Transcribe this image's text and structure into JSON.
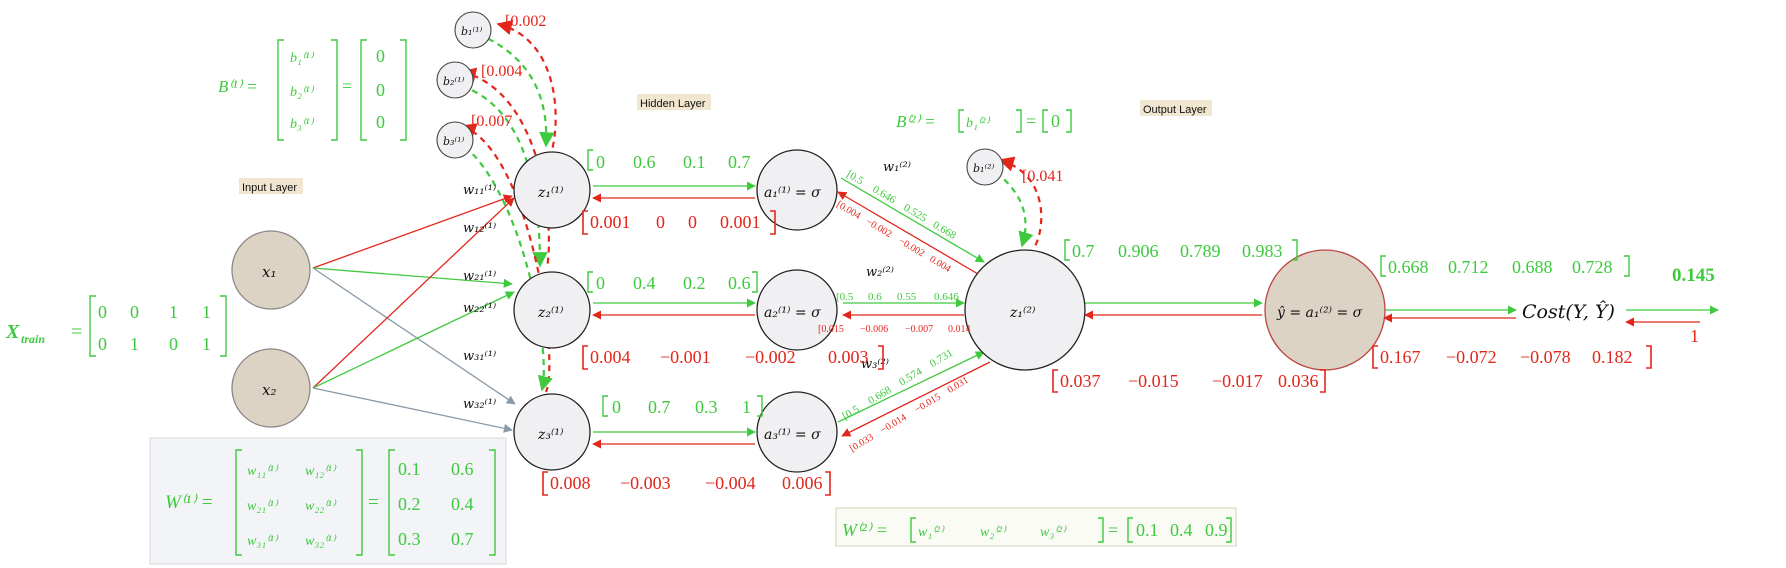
{
  "layers": {
    "input": "Input Layer",
    "hidden": "Hidden Layer",
    "output": "Output Layer"
  },
  "nodes": {
    "x1": "x₁",
    "x2": "x₂",
    "z11": "z₁⁽¹⁾",
    "z21": "z₂⁽¹⁾",
    "z31": "z₃⁽¹⁾",
    "a11": "a₁⁽¹⁾ = σ",
    "a21": "a₂⁽¹⁾ = σ",
    "a31": "a₃⁽¹⁾ = σ",
    "z12": "z₁⁽²⁾",
    "yhat": "ŷ = a₁⁽²⁾ = σ",
    "cost": "Cost(Y, Ŷ)",
    "b11": "b₁⁽¹⁾",
    "b21": "b₂⁽¹⁾",
    "b31": "b₃⁽¹⁾",
    "b12": "b₁⁽²⁾"
  },
  "weight_labels": {
    "w11": "w₁₁⁽¹⁾",
    "w12": "w₁₂⁽¹⁾",
    "w21": "w₂₁⁽¹⁾",
    "w22": "w₂₂⁽¹⁾",
    "w31": "w₃₁⁽¹⁾",
    "w32": "w₃₂⁽¹⁾",
    "w1_2": "w₁⁽²⁾",
    "w2_2": "w₂⁽²⁾",
    "w3_2": "w₃⁽²⁾"
  },
  "x_train": {
    "label": "X",
    "sub": "train",
    "rows": [
      [
        "0",
        "0",
        "1",
        "1"
      ],
      [
        "0",
        "1",
        "0",
        "1"
      ]
    ]
  },
  "B1": {
    "label": "B⁽¹⁾ =",
    "symbols": [
      "b₁⁽¹⁾",
      "b₂⁽¹⁾",
      "b₃⁽¹⁾"
    ],
    "values": [
      "0",
      "0",
      "0"
    ]
  },
  "W1": {
    "label": "W⁽¹⁾ =",
    "symbols": [
      [
        "w₁₁⁽¹⁾",
        "w₁₂⁽¹⁾"
      ],
      [
        "w₂₁⁽¹⁾",
        "w₂₂⁽¹⁾"
      ],
      [
        "w₃₁⁽¹⁾",
        "w₃₂⁽¹⁾"
      ]
    ],
    "values": [
      [
        "0.1",
        "0.6"
      ],
      [
        "0.2",
        "0.4"
      ],
      [
        "0.3",
        "0.7"
      ]
    ]
  },
  "B2": {
    "label": "B⁽²⁾ =",
    "symbol": "b₁⁽²⁾",
    "value": "0"
  },
  "W2": {
    "label": "W⁽²⁾ =",
    "symbols": [
      "w₁⁽²⁾",
      "w₂⁽²⁾",
      "w₃⁽²⁾"
    ],
    "values": [
      "0.1",
      "0.4",
      "0.9"
    ]
  },
  "forward": {
    "z1": [
      "0",
      "0.6",
      "0.1",
      "0.7"
    ],
    "z2": [
      "0",
      "0.4",
      "0.2",
      "0.6"
    ],
    "z3": [
      "0",
      "0.7",
      "0.3",
      "1"
    ],
    "a1_to_z": [
      "0.5",
      "0.646",
      "0.525",
      "0.668"
    ],
    "a2_to_z": [
      "0.5",
      "0.6",
      "0.55",
      "0.646"
    ],
    "a3_to_z": [
      "0.5",
      "0.668",
      "0.574",
      "0.731"
    ],
    "z_out": [
      "0.7",
      "0.906",
      "0.789",
      "0.983"
    ],
    "yhat": [
      "0.668",
      "0.712",
      "0.688",
      "0.728"
    ],
    "cost": "0.145"
  },
  "backward": {
    "z1": [
      "0.001",
      "0",
      "0",
      "0.001"
    ],
    "z2": [
      "0.004",
      "−0.001",
      "−0.002",
      "0.003"
    ],
    "z3": [
      "0.008",
      "−0.003",
      "−0.004",
      "0.006"
    ],
    "a1_to_z": [
      "0.004",
      "−0.002",
      "−0.002",
      "0.004"
    ],
    "a2_to_z": [
      "0.015",
      "−0.006",
      "−0.007",
      "0.014"
    ],
    "a3_to_z": [
      "0.033",
      "−0.014",
      "−0.015",
      "0.031"
    ],
    "z_out": [
      "0.037",
      "−0.015",
      "−0.017",
      "0.036"
    ],
    "yhat": [
      "0.167",
      "−0.072",
      "−0.078",
      "0.182"
    ],
    "cost": "1",
    "b1": "0.002",
    "b2": "0.004",
    "b3": "0.007",
    "b_out": "0.041"
  },
  "colors": {
    "forward": "#3ec93e",
    "backward": "#e3261b"
  }
}
